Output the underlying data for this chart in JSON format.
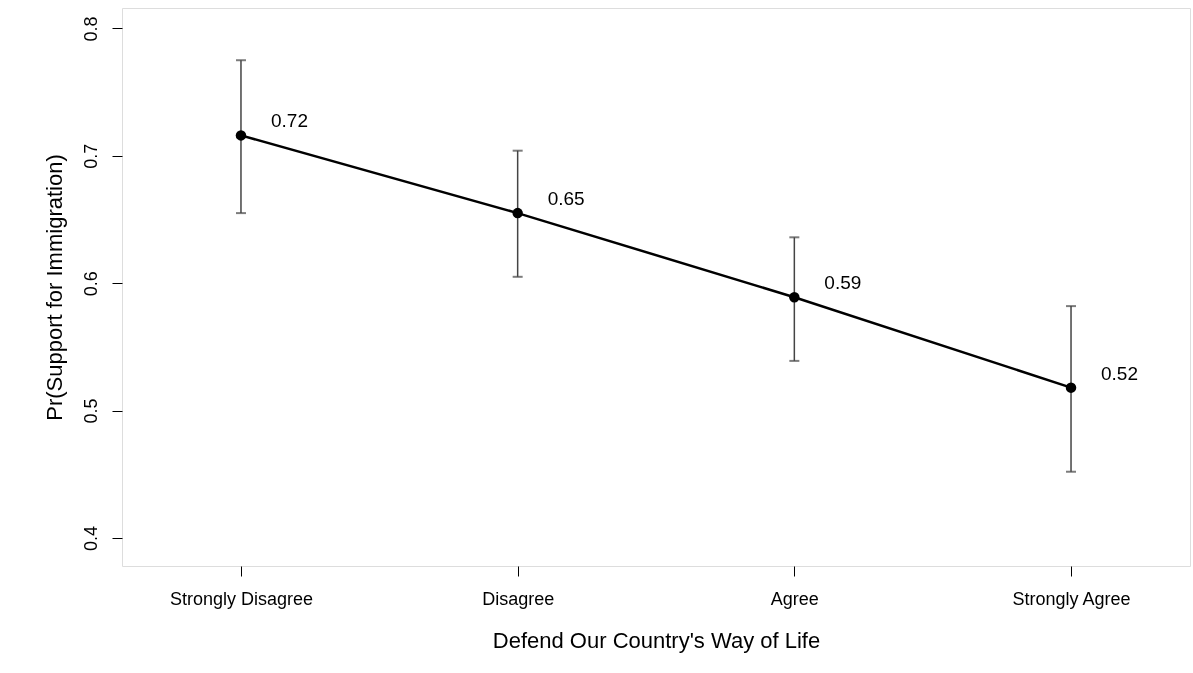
{
  "chart_data": {
    "type": "line",
    "xlabel": "Defend Our Country's Way of Life",
    "ylabel": "Pr(Support for Immigration)",
    "categories": [
      "Strongly Disagree",
      "Disagree",
      "Agree",
      "Strongly Agree"
    ],
    "values": [
      0.716,
      0.655,
      0.589,
      0.518
    ],
    "errors": [
      [
        0.655,
        0.775
      ],
      [
        0.605,
        0.704
      ],
      [
        0.539,
        0.636
      ],
      [
        0.452,
        0.582
      ]
    ],
    "value_labels": [
      "0.72",
      "0.65",
      "0.59",
      "0.52"
    ],
    "color": "#000000",
    "marker": "circle",
    "line_style": "solid",
    "ylim": [
      0.378,
      0.816
    ],
    "yticks": [
      0.4,
      0.5,
      0.6,
      0.7,
      0.8
    ]
  }
}
